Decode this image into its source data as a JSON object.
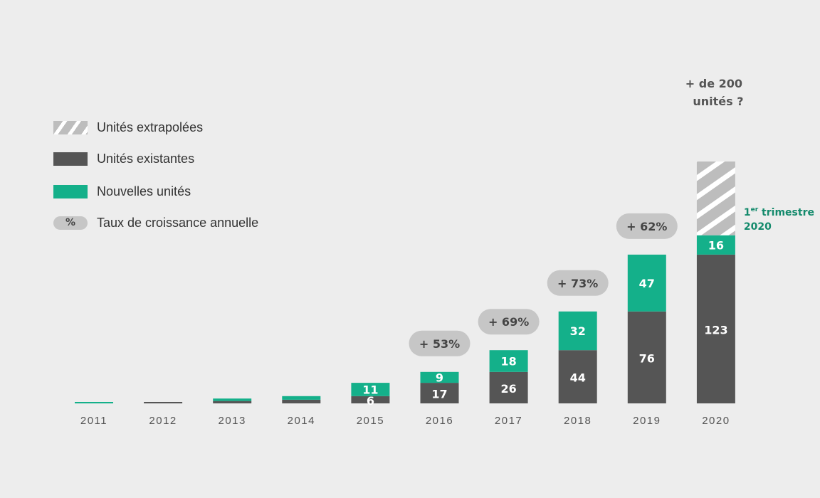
{
  "legend": {
    "extrapolated": "Unités extrapolées",
    "existing": "Unités existantes",
    "new": "Nouvelles unités",
    "growth_symbol": "%",
    "growth": "Taux de croissance annuelle"
  },
  "colors": {
    "background": "#ededed",
    "existing": "#555555",
    "new": "#14b08a",
    "hatch": "#bdbdbd",
    "growth_pill": "#c6c6c6",
    "annotation_green": "#148a6c"
  },
  "chart_data": {
    "type": "bar",
    "stacked": true,
    "categories": [
      "2011",
      "2012",
      "2013",
      "2014",
      "2015",
      "2016",
      "2017",
      "2018",
      "2019",
      "2020"
    ],
    "series": [
      {
        "name": "Unités existantes",
        "values": [
          0,
          1,
          2,
          3,
          6,
          17,
          26,
          44,
          76,
          123
        ],
        "labels": [
          "",
          "",
          "",
          "",
          "6",
          "17",
          "26",
          "44",
          "76",
          "123"
        ]
      },
      {
        "name": "Nouvelles unités",
        "values": [
          1,
          0,
          2,
          3,
          11,
          9,
          18,
          32,
          47,
          16
        ],
        "labels": [
          "",
          "",
          "",
          "",
          "11",
          "9",
          "18",
          "32",
          "47",
          "16"
        ]
      },
      {
        "name": "Unités extrapolées",
        "values": [
          0,
          0,
          0,
          0,
          0,
          0,
          0,
          0,
          0,
          61
        ],
        "labels": [
          "",
          "",
          "",
          "",
          "",
          "",
          "",
          "",
          "",
          ""
        ]
      }
    ],
    "growth_rates": [
      {
        "category": "2016",
        "label": "+ 53%"
      },
      {
        "category": "2017",
        "label": "+ 69%"
      },
      {
        "category": "2018",
        "label": "+ 73%"
      },
      {
        "category": "2019",
        "label": "+ 62%"
      }
    ],
    "annotations": {
      "top_2020": [
        "+ de 200",
        "unités ?"
      ],
      "quarter_prefix": "1",
      "quarter_sup": "er",
      "quarter_rest": " trimestre",
      "quarter_year": "2020"
    },
    "ylim": [
      0,
      200
    ],
    "grid": false,
    "legend_position": "left"
  }
}
